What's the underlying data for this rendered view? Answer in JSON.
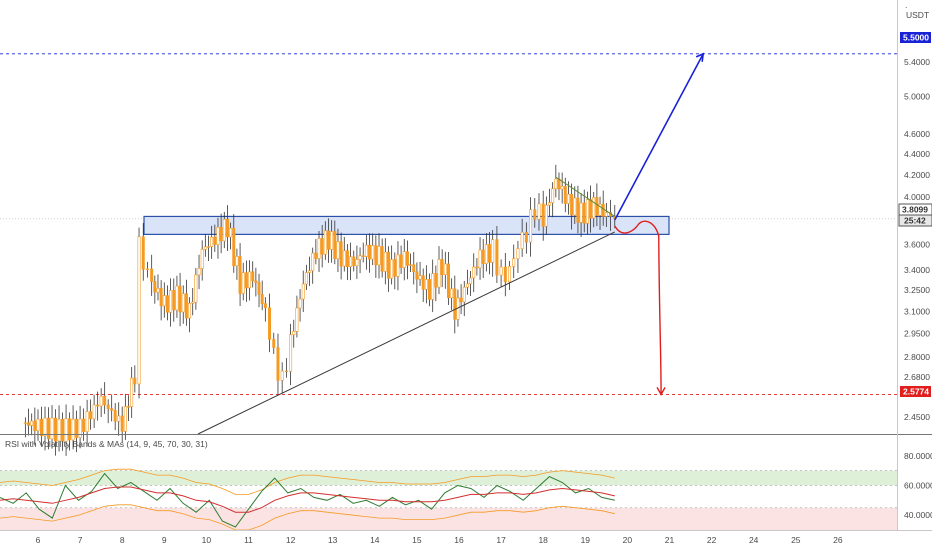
{
  "colors": {
    "target_up": "#1a22d6",
    "target_down": "#e01e1e",
    "candle": "#f59a23",
    "resistance_fill": "#d3dff7",
    "resistance_border": "#2c4fa8",
    "support_line": "#3a3a3a",
    "descending_line": "#5a8a2e",
    "rsi_line": "#2e7d32",
    "rsi_ma": "#d32f2f",
    "rsi_band_upper": "#f59a23",
    "overbought_fill": "#dff0d8",
    "oversold_fill": "#fbe3e3"
  },
  "currency_label": "USDT",
  "price_tags": {
    "target_up": "5.5000",
    "current": "3.8099",
    "countdown": "25:42",
    "target_down": "2.5774"
  },
  "rsi_title": "RSI with Volatility Bands & MAs (14, 9, 45, 70, 30, 31)",
  "chart_data": [
    {
      "type": "candlestick",
      "y_scale": "log",
      "ylim": [
        2.36,
        6.2
      ],
      "y_tick_labels": [
        "5.4000",
        "5.0000",
        "4.6000",
        "4.4000",
        "4.2000",
        "4.0000",
        "3.6000",
        "3.4000",
        "3.2500",
        "3.1000",
        "2.9500",
        "2.8000",
        "2.6800",
        "2.4500"
      ],
      "x_tick_labels": [
        "6",
        "7",
        "8",
        "9",
        "10",
        "11",
        "12",
        "13",
        "14",
        "15",
        "16",
        "17",
        "18",
        "19",
        "20",
        "21",
        "22",
        "24",
        "25",
        "26"
      ],
      "series": [
        {
          "x": [
            5.7,
            6.0,
            6.5,
            7.0,
            7.5,
            8.0,
            8.3,
            8.4,
            8.5,
            8.7,
            9.0,
            9.3,
            9.6,
            9.9,
            10.2,
            10.5,
            10.8,
            11.1,
            11.4,
            11.6,
            11.8,
            12.0,
            12.3,
            12.6,
            12.9,
            13.2,
            13.5,
            13.8,
            14.1,
            14.4,
            14.7,
            15.0,
            15.3,
            15.6,
            15.9,
            16.2,
            16.5,
            16.8,
            17.0,
            17.2,
            17.4,
            17.6,
            17.8,
            18.0,
            18.3,
            18.6,
            18.9,
            19.2,
            19.5,
            19.7
          ],
          "close": [
            2.42,
            2.4,
            2.38,
            2.39,
            2.55,
            2.4,
            2.7,
            3.75,
            3.45,
            3.3,
            3.15,
            3.2,
            3.1,
            3.55,
            3.65,
            3.75,
            3.3,
            3.35,
            3.1,
            2.8,
            2.65,
            2.9,
            3.3,
            3.55,
            3.65,
            3.5,
            3.45,
            3.55,
            3.5,
            3.4,
            3.5,
            3.35,
            3.25,
            3.45,
            3.1,
            3.3,
            3.5,
            3.55,
            3.35,
            3.4,
            3.6,
            3.7,
            3.9,
            3.8,
            4.15,
            3.95,
            3.85,
            3.92,
            3.85,
            3.81
          ]
        }
      ],
      "annotations": {
        "resistance_zone": [
          3.68,
          3.83
        ],
        "support_line": {
          "x": [
            9.8,
            19.7
          ],
          "y": [
            2.36,
            3.7
          ]
        },
        "descending_line": {
          "x": [
            18.3,
            19.7
          ],
          "y": [
            4.18,
            3.83
          ]
        },
        "target_up": {
          "value": 5.5,
          "arrow_to_x": 21.8
        },
        "target_down": {
          "value": 2.5774,
          "arrow_to_x": 20.8
        }
      }
    },
    {
      "type": "line",
      "title": "RSI with Volatility Bands & MAs (14, 9, 45, 70, 30, 31)",
      "ylim": [
        30,
        92
      ],
      "y_tick_labels": [
        "80.0000",
        "60.0000",
        "40.0000"
      ],
      "overbought_band": [
        60,
        70
      ],
      "oversold_band": [
        30,
        45
      ],
      "series": [
        {
          "name": "RSI",
          "values": [
            52,
            48,
            55,
            44,
            38,
            60,
            50,
            56,
            68,
            58,
            62,
            56,
            50,
            58,
            48,
            42,
            50,
            36,
            32,
            44,
            56,
            65,
            55,
            58,
            52,
            50,
            54,
            48,
            50,
            46,
            52,
            47,
            50,
            44,
            55,
            60,
            58,
            52,
            60,
            56,
            50,
            58,
            66,
            62,
            55,
            58,
            52,
            50
          ]
        },
        {
          "name": "MA",
          "values": [
            50,
            51,
            50,
            49,
            48,
            50,
            52,
            55,
            58,
            59,
            59,
            57,
            55,
            55,
            53,
            50,
            49,
            46,
            42,
            42,
            45,
            50,
            53,
            55,
            55,
            54,
            53,
            52,
            51,
            50,
            50,
            49,
            49,
            49,
            50,
            52,
            54,
            54,
            55,
            55,
            54,
            55,
            57,
            58,
            57,
            56,
            55,
            53
          ]
        }
      ]
    }
  ]
}
